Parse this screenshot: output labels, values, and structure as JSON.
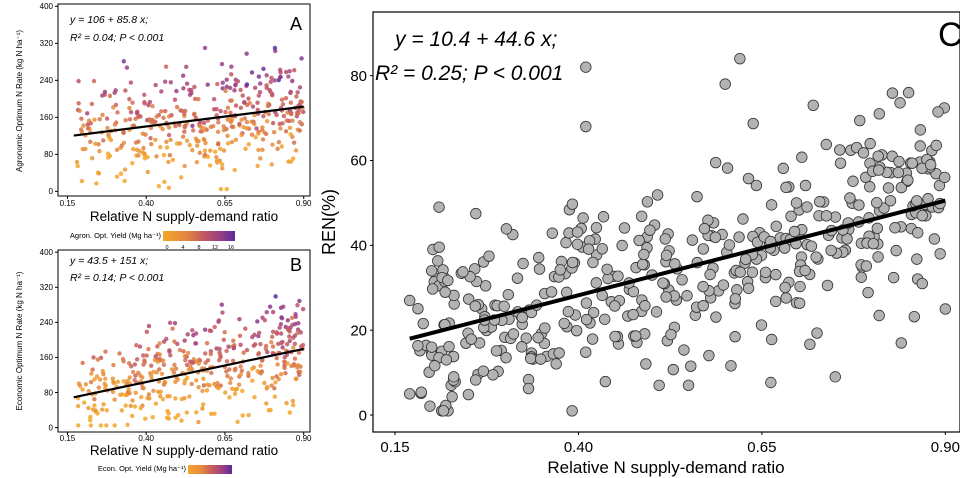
{
  "colors": {
    "gradient": [
      "#f4a62a",
      "#e58a3c",
      "#c65a5e",
      "#9a3f86",
      "#5b2a9e"
    ],
    "gray_point": "#b3b3b3",
    "line": "#000000"
  },
  "chart_data": [
    {
      "id": "A",
      "type": "scatter",
      "panel_letter": "A",
      "equation": "y = 106 + 85.8 x;",
      "stats": "R² = 0.04; P < 0.001",
      "xlabel": "Relative N supply-demand ratio",
      "ylabel": "Agronomic Optimum N Rate (kg N ha⁻¹)",
      "xlim": [
        0.12,
        0.92
      ],
      "ylim": [
        -10,
        405
      ],
      "xticks": [
        0.15,
        0.4,
        0.65,
        0.9
      ],
      "xtick_labels": [
        "0.15",
        "0.40",
        "0.65",
        "0.90"
      ],
      "yticks": [
        0,
        80,
        160,
        240,
        320,
        400
      ],
      "ytick_labels": [
        "0",
        "80",
        "160",
        "240",
        "320",
        "400"
      ],
      "fit": {
        "intercept": 106,
        "slope": 85.8,
        "x_range": [
          0.17,
          0.9
        ]
      },
      "n_points": 420,
      "legend": {
        "title": "Agron. Opt. Yield (Mg ha⁻¹)",
        "tick_labels": [
          "0",
          "4",
          "8",
          "12",
          "16"
        ]
      }
    },
    {
      "id": "B",
      "type": "scatter",
      "panel_letter": "B",
      "equation": "y = 43.5 + 151 x;",
      "stats": "R² = 0.14; P < 0.001",
      "xlabel": "Relative N supply-demand ratio",
      "ylabel": "Economic Optimum N Rate (kg N ha⁻¹)",
      "xlim": [
        0.12,
        0.92
      ],
      "ylim": [
        -10,
        405
      ],
      "xticks": [
        0.15,
        0.4,
        0.65,
        0.9
      ],
      "xtick_labels": [
        "0.15",
        "0.40",
        "0.65",
        "0.90"
      ],
      "yticks": [
        0,
        80,
        160,
        240,
        320,
        400
      ],
      "ytick_labels": [
        "0",
        "80",
        "160",
        "240",
        "320",
        "400"
      ],
      "fit": {
        "intercept": 43.5,
        "slope": 151,
        "x_range": [
          0.17,
          0.9
        ]
      },
      "n_points": 420,
      "legend": {
        "title": "Econ. Opt. Yield (Mg ha⁻¹)",
        "tick_labels": []
      }
    },
    {
      "id": "C",
      "type": "scatter",
      "panel_letter": "C",
      "equation": "y = 10.4 + 44.6 x;",
      "stats": "R² = 0.25; P < 0.001",
      "xlabel": "Relative N supply-demand ratio",
      "ylabel": "REN(%)",
      "xlim": [
        0.12,
        0.92
      ],
      "ylim": [
        -4,
        95
      ],
      "xticks": [
        0.15,
        0.4,
        0.65,
        0.9
      ],
      "xtick_labels": [
        "0.15",
        "0.40",
        "0.65",
        "0.90"
      ],
      "yticks": [
        0,
        20,
        40,
        60,
        80
      ],
      "ytick_labels": [
        "0",
        "20",
        "40",
        "60",
        "80"
      ],
      "fit": {
        "intercept": 10.4,
        "slope": 44.6,
        "x_range": [
          0.17,
          0.9
        ]
      },
      "n_points": 430,
      "highlight_points": [
        {
          "x": 0.17,
          "y": 5
        },
        {
          "x": 0.17,
          "y": 27
        },
        {
          "x": 0.2,
          "y": 34
        },
        {
          "x": 0.21,
          "y": 49
        },
        {
          "x": 0.2,
          "y": 16
        },
        {
          "x": 0.22,
          "y": 13
        },
        {
          "x": 0.41,
          "y": 82
        },
        {
          "x": 0.41,
          "y": 68
        },
        {
          "x": 0.62,
          "y": 84
        },
        {
          "x": 0.6,
          "y": 78
        },
        {
          "x": 0.85,
          "y": 76
        },
        {
          "x": 0.81,
          "y": 71
        },
        {
          "x": 0.72,
          "y": 73
        },
        {
          "x": 0.88,
          "y": 59
        },
        {
          "x": 0.9,
          "y": 25
        },
        {
          "x": 0.51,
          "y": 7
        },
        {
          "x": 0.55,
          "y": 7
        },
        {
          "x": 0.75,
          "y": 9
        },
        {
          "x": 0.84,
          "y": 17
        },
        {
          "x": 0.23,
          "y": 9
        }
      ]
    }
  ]
}
